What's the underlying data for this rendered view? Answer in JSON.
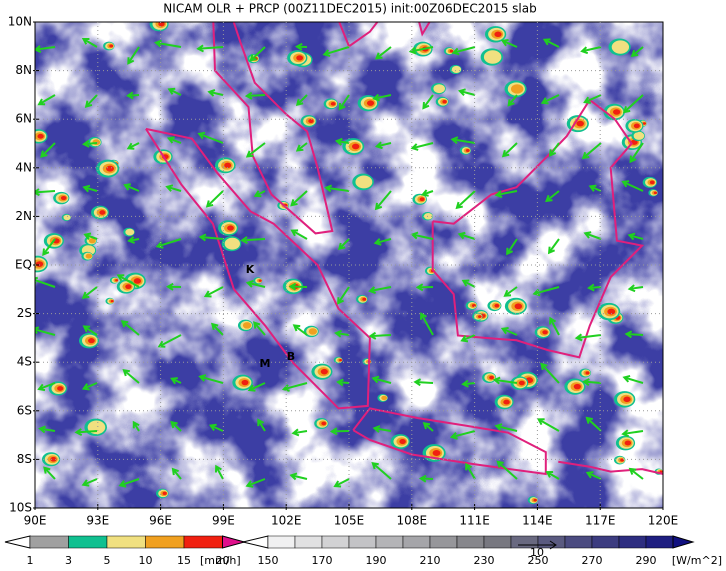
{
  "title": "NICAM OLR + PRCP (00Z11DEC2015) init:00Z06DEC2015 slab",
  "map": {
    "lat_labels": [
      "10N",
      "8N",
      "6N",
      "4N",
      "2N",
      "EQ",
      "2S",
      "4S",
      "6S",
      "8S",
      "10S"
    ],
    "lon_labels": [
      "90E",
      "93E",
      "96E",
      "99E",
      "102E",
      "105E",
      "108E",
      "111E",
      "114E",
      "117E",
      "120E"
    ],
    "place_labels": [
      "K",
      "M",
      "B"
    ]
  },
  "colorbars": [
    {
      "labels": [
        1,
        3,
        5,
        10,
        15,
        20
      ],
      "unit": "[mm/h]"
    },
    {
      "labels": [
        150,
        170,
        190,
        210,
        230,
        250,
        270,
        290
      ],
      "unit": "[W/m^2]"
    }
  ],
  "vector_scale": {
    "label": 10
  }
}
